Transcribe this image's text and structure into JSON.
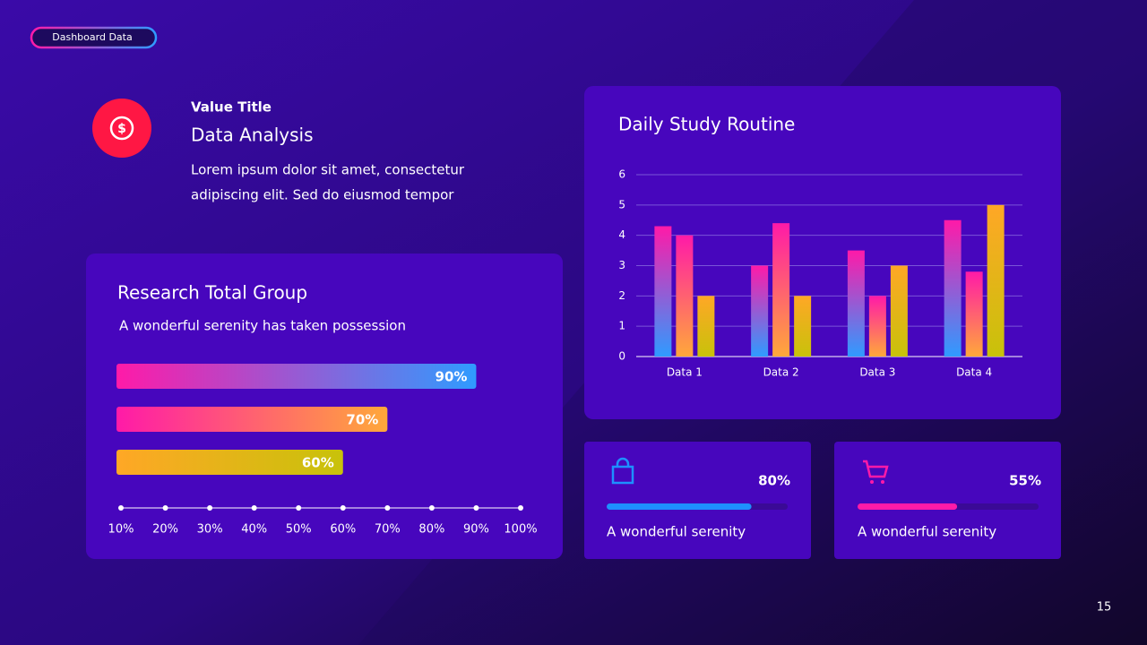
{
  "badge": "Dashboard Data",
  "value_block": {
    "kicker": "Value Title",
    "title": "Data Analysis",
    "body_lines": [
      "Lorem ipsum dolor sit amet, consectetur",
      "adipiscing elit. Sed do eiusmod tempor"
    ]
  },
  "page_number": "15",
  "chart_data": [
    {
      "type": "hbar",
      "title": "Research Total Group",
      "subtitle": "A wonderful serenity has taken possession",
      "values": [
        90,
        70,
        60
      ],
      "value_labels": [
        "90%",
        "70%",
        "60%"
      ],
      "colors": [
        [
          "#ff1aa8",
          "#2f9bff"
        ],
        [
          "#ff1aa8",
          "#ffa83a"
        ],
        [
          "#ffa726",
          "#c8c20a"
        ]
      ],
      "xlim": [
        10,
        100
      ],
      "xticks": [
        {
          "value": 10,
          "label": "10%"
        },
        {
          "value": 20,
          "label": "20%"
        },
        {
          "value": 30,
          "label": "30%"
        },
        {
          "value": 40,
          "label": "40%"
        },
        {
          "value": 50,
          "label": "50%"
        },
        {
          "value": 60,
          "label": "60%"
        },
        {
          "value": 70,
          "label": "70%"
        },
        {
          "value": 80,
          "label": "80%"
        },
        {
          "value": 90,
          "label": "90%"
        },
        {
          "value": 100,
          "label": "100%"
        }
      ]
    },
    {
      "type": "bar",
      "title": "Daily Study Routine",
      "categories": [
        "Data 1",
        "Data 2",
        "Data 3",
        "Data 4"
      ],
      "series": [
        {
          "color": [
            "#ff1aa8",
            "#2f9bff"
          ],
          "values": [
            4.3,
            3,
            3.5,
            4.5
          ]
        },
        {
          "color": [
            "#ff1aa8",
            "#ffa83a"
          ],
          "values": [
            4,
            4.4,
            2,
            2.8
          ]
        },
        {
          "color": [
            "#ffa726",
            "#c8c20a"
          ],
          "values": [
            2,
            2,
            3,
            5
          ]
        }
      ],
      "ylim": [
        0,
        6
      ],
      "yticks": [
        0,
        1,
        2,
        3,
        4,
        5,
        6
      ],
      "grid": true
    },
    {
      "type": "progress",
      "values": [
        80
      ],
      "value_labels": [
        "80%"
      ],
      "caption": "A wonderful serenity",
      "color": "#1e90ff",
      "xlim": [
        0,
        100
      ]
    },
    {
      "type": "progress",
      "values": [
        55
      ],
      "value_labels": [
        "55%"
      ],
      "caption": "A wonderful serenity",
      "color": "#ff1aa8",
      "xlim": [
        0,
        100
      ]
    }
  ]
}
